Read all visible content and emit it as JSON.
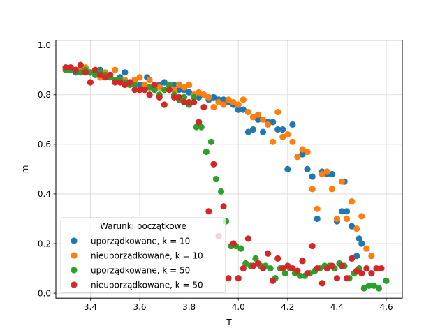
{
  "chart_data": {
    "type": "scatter",
    "xlabel": "T",
    "ylabel": "m",
    "xlim": [
      3.26,
      4.665
    ],
    "ylim": [
      -0.02,
      1.02
    ],
    "xticks": [
      "3.4",
      "3.6",
      "3.8",
      "4.0",
      "4.2",
      "4.4",
      "4.6"
    ],
    "yticks": [
      "0.0",
      "0.2",
      "0.4",
      "0.6",
      "0.8",
      "1.0"
    ],
    "grid": true,
    "legend": {
      "title": "Warunki początkowe",
      "placement": "lower-left"
    },
    "series": [
      {
        "name": "uporządkowane, k = 10",
        "color": "#1f77b4",
        "points": [
          [
            3.3,
            0.91
          ],
          [
            3.32,
            0.91
          ],
          [
            3.34,
            0.89
          ],
          [
            3.36,
            0.9
          ],
          [
            3.38,
            0.9
          ],
          [
            3.4,
            0.89
          ],
          [
            3.42,
            0.9
          ],
          [
            3.44,
            0.9
          ],
          [
            3.46,
            0.89
          ],
          [
            3.48,
            0.88
          ],
          [
            3.5,
            0.86
          ],
          [
            3.52,
            0.87
          ],
          [
            3.54,
            0.89
          ],
          [
            3.56,
            0.85
          ],
          [
            3.58,
            0.86
          ],
          [
            3.6,
            0.84
          ],
          [
            3.62,
            0.83
          ],
          [
            3.63,
            0.87
          ],
          [
            3.65,
            0.83
          ],
          [
            3.68,
            0.84
          ],
          [
            3.7,
            0.85
          ],
          [
            3.72,
            0.82
          ],
          [
            3.74,
            0.84
          ],
          [
            3.76,
            0.82
          ],
          [
            3.78,
            0.82
          ],
          [
            3.8,
            0.81
          ],
          [
            3.82,
            0.8
          ],
          [
            3.84,
            0.79
          ],
          [
            3.86,
            0.8
          ],
          [
            3.88,
            0.78
          ],
          [
            3.9,
            0.79
          ],
          [
            3.92,
            0.78
          ],
          [
            3.94,
            0.78
          ],
          [
            3.96,
            0.77
          ],
          [
            3.98,
            0.76
          ],
          [
            4.0,
            0.74
          ],
          [
            4.02,
            0.74
          ],
          [
            4.04,
            0.65
          ],
          [
            4.06,
            0.66
          ],
          [
            4.08,
            0.7
          ],
          [
            4.1,
            0.65
          ],
          [
            4.12,
            0.69
          ],
          [
            4.14,
            0.69
          ],
          [
            4.16,
            0.66
          ],
          [
            4.18,
            0.66
          ],
          [
            4.2,
            0.5
          ],
          [
            4.22,
            0.68
          ],
          [
            4.24,
            0.55
          ],
          [
            4.26,
            0.56
          ],
          [
            4.28,
            0.5
          ],
          [
            4.3,
            0.47
          ],
          [
            4.32,
            0.3
          ],
          [
            4.34,
            0.49
          ],
          [
            4.36,
            0.48
          ],
          [
            4.38,
            0.48
          ],
          [
            4.4,
            0.29
          ],
          [
            4.42,
            0.33
          ],
          [
            4.43,
            0.45
          ],
          [
            4.44,
            0.33
          ],
          [
            4.46,
            0.27
          ],
          [
            4.48,
            0.15
          ],
          [
            4.49,
            0.22
          ],
          [
            4.5,
            0.2
          ]
        ]
      },
      {
        "name": "nieuporządkowane, k = 10",
        "color": "#ff7f0e",
        "points": [
          [
            3.3,
            0.9
          ],
          [
            3.32,
            0.91
          ],
          [
            3.34,
            0.9
          ],
          [
            3.36,
            0.91
          ],
          [
            3.38,
            0.91
          ],
          [
            3.4,
            0.89
          ],
          [
            3.42,
            0.9
          ],
          [
            3.44,
            0.87
          ],
          [
            3.46,
            0.89
          ],
          [
            3.48,
            0.88
          ],
          [
            3.5,
            0.9
          ],
          [
            3.52,
            0.86
          ],
          [
            3.54,
            0.86
          ],
          [
            3.56,
            0.85
          ],
          [
            3.58,
            0.86
          ],
          [
            3.6,
            0.87
          ],
          [
            3.62,
            0.84
          ],
          [
            3.64,
            0.86
          ],
          [
            3.66,
            0.83
          ],
          [
            3.68,
            0.83
          ],
          [
            3.7,
            0.82
          ],
          [
            3.72,
            0.84
          ],
          [
            3.74,
            0.82
          ],
          [
            3.76,
            0.84
          ],
          [
            3.78,
            0.83
          ],
          [
            3.8,
            0.84
          ],
          [
            3.82,
            0.8
          ],
          [
            3.84,
            0.81
          ],
          [
            3.86,
            0.8
          ],
          [
            3.88,
            0.79
          ],
          [
            3.9,
            0.75
          ],
          [
            3.92,
            0.77
          ],
          [
            3.94,
            0.76
          ],
          [
            3.96,
            0.78
          ],
          [
            3.98,
            0.77
          ],
          [
            4.0,
            0.76
          ],
          [
            4.02,
            0.78
          ],
          [
            4.04,
            0.73
          ],
          [
            4.06,
            0.71
          ],
          [
            4.08,
            0.72
          ],
          [
            4.1,
            0.7
          ],
          [
            4.12,
            0.68
          ],
          [
            4.14,
            0.61
          ],
          [
            4.16,
            0.73
          ],
          [
            4.18,
            0.63
          ],
          [
            4.2,
            0.64
          ],
          [
            4.22,
            0.61
          ],
          [
            4.24,
            0.55
          ],
          [
            4.26,
            0.58
          ],
          [
            4.28,
            0.57
          ],
          [
            4.3,
            0.42
          ],
          [
            4.32,
            0.34
          ],
          [
            4.34,
            0.48
          ],
          [
            4.36,
            0.49
          ],
          [
            4.38,
            0.42
          ],
          [
            4.4,
            0.3
          ],
          [
            4.42,
            0.45
          ],
          [
            4.44,
            0.3
          ],
          [
            4.46,
            0.37
          ],
          [
            4.48,
            0.26
          ],
          [
            4.5,
            0.31
          ],
          [
            4.52,
            0.18
          ],
          [
            4.54,
            0.15
          ]
        ]
      },
      {
        "name": "uporządkowane, k = 50",
        "color": "#2ca02c",
        "points": [
          [
            3.3,
            0.9
          ],
          [
            3.32,
            0.9
          ],
          [
            3.34,
            0.9
          ],
          [
            3.36,
            0.89
          ],
          [
            3.38,
            0.9
          ],
          [
            3.4,
            0.89
          ],
          [
            3.42,
            0.88
          ],
          [
            3.44,
            0.89
          ],
          [
            3.46,
            0.88
          ],
          [
            3.48,
            0.87
          ],
          [
            3.5,
            0.86
          ],
          [
            3.52,
            0.86
          ],
          [
            3.54,
            0.85
          ],
          [
            3.56,
            0.84
          ],
          [
            3.58,
            0.84
          ],
          [
            3.6,
            0.82
          ],
          [
            3.62,
            0.82
          ],
          [
            3.64,
            0.83
          ],
          [
            3.66,
            0.82
          ],
          [
            3.68,
            0.8
          ],
          [
            3.7,
            0.82
          ],
          [
            3.72,
            0.84
          ],
          [
            3.74,
            0.8
          ],
          [
            3.76,
            0.78
          ],
          [
            3.78,
            0.79
          ],
          [
            3.8,
            0.76
          ],
          [
            3.82,
            0.79
          ],
          [
            3.83,
            0.67
          ],
          [
            3.85,
            0.67
          ],
          [
            3.87,
            0.57
          ],
          [
            3.89,
            0.61
          ],
          [
            3.91,
            0.46
          ],
          [
            3.93,
            0.41
          ],
          [
            3.95,
            0.29
          ],
          [
            3.97,
            0.19
          ],
          [
            3.99,
            0.19
          ],
          [
            4.01,
            0.18
          ],
          [
            4.03,
            0.12
          ],
          [
            4.05,
            0.11
          ],
          [
            4.07,
            0.14
          ],
          [
            4.09,
            0.11
          ],
          [
            4.11,
            0.11
          ],
          [
            4.13,
            0.1
          ],
          [
            4.15,
            0.06
          ],
          [
            4.17,
            0.1
          ],
          [
            4.19,
            0.08
          ],
          [
            4.21,
            0.1
          ],
          [
            4.23,
            0.08
          ],
          [
            4.25,
            0.07
          ],
          [
            4.27,
            0.07
          ],
          [
            4.29,
            0.08
          ],
          [
            4.31,
            0.09
          ],
          [
            4.33,
            0.1
          ],
          [
            4.35,
            0.11
          ],
          [
            4.37,
            0.11
          ],
          [
            4.39,
            0.1
          ],
          [
            4.41,
            0.12
          ],
          [
            4.43,
            0.11
          ],
          [
            4.45,
            0.06
          ],
          [
            4.47,
            0.08
          ],
          [
            4.49,
            0.1
          ],
          [
            4.51,
            0.02
          ],
          [
            4.53,
            0.03
          ],
          [
            4.55,
            0.03
          ],
          [
            4.57,
            0.02
          ],
          [
            4.6,
            0.05
          ]
        ]
      },
      {
        "name": "nieuporządkowane, k = 50",
        "color": "#d62728",
        "points": [
          [
            3.3,
            0.91
          ],
          [
            3.32,
            0.91
          ],
          [
            3.34,
            0.9
          ],
          [
            3.36,
            0.92
          ],
          [
            3.38,
            0.89
          ],
          [
            3.4,
            0.85
          ],
          [
            3.42,
            0.9
          ],
          [
            3.44,
            0.88
          ],
          [
            3.46,
            0.87
          ],
          [
            3.48,
            0.88
          ],
          [
            3.5,
            0.85
          ],
          [
            3.52,
            0.85
          ],
          [
            3.54,
            0.84
          ],
          [
            3.56,
            0.85
          ],
          [
            3.58,
            0.82
          ],
          [
            3.6,
            0.82
          ],
          [
            3.62,
            0.82
          ],
          [
            3.64,
            0.8
          ],
          [
            3.66,
            0.84
          ],
          [
            3.68,
            0.79
          ],
          [
            3.7,
            0.76
          ],
          [
            3.72,
            0.82
          ],
          [
            3.74,
            0.79
          ],
          [
            3.76,
            0.79
          ],
          [
            3.78,
            0.77
          ],
          [
            3.8,
            0.77
          ],
          [
            3.82,
            0.77
          ],
          [
            3.84,
            0.69
          ],
          [
            3.86,
            0.75
          ],
          [
            3.88,
            0.33
          ],
          [
            3.9,
            0.52
          ],
          [
            3.92,
            0.23
          ],
          [
            3.94,
            0.35
          ],
          [
            3.96,
            0.06
          ],
          [
            3.98,
            0.2
          ],
          [
            4.0,
            0.06
          ],
          [
            4.02,
            0.1
          ],
          [
            4.04,
            0.22
          ],
          [
            4.06,
            0.11
          ],
          [
            4.08,
            0.12
          ],
          [
            4.1,
            0.1
          ],
          [
            4.12,
            0.16
          ],
          [
            4.14,
            0.05
          ],
          [
            4.16,
            0.14
          ],
          [
            4.18,
            0.1
          ],
          [
            4.2,
            0.11
          ],
          [
            4.22,
            0.1
          ],
          [
            4.24,
            0.09
          ],
          [
            4.26,
            0.13
          ],
          [
            4.28,
            0.08
          ],
          [
            4.3,
            0.19
          ],
          [
            4.32,
            0.1
          ],
          [
            4.34,
            0.04
          ],
          [
            4.36,
            0.1
          ],
          [
            4.38,
            0.11
          ],
          [
            4.4,
            0.06
          ],
          [
            4.42,
            0.11
          ],
          [
            4.44,
            0.06
          ],
          [
            4.46,
            0.14
          ],
          [
            4.48,
            0.09
          ],
          [
            4.5,
            0.08
          ],
          [
            4.52,
            0.1
          ],
          [
            4.54,
            0.08
          ],
          [
            4.56,
            0.1
          ],
          [
            4.58,
            0.1
          ]
        ]
      }
    ]
  }
}
